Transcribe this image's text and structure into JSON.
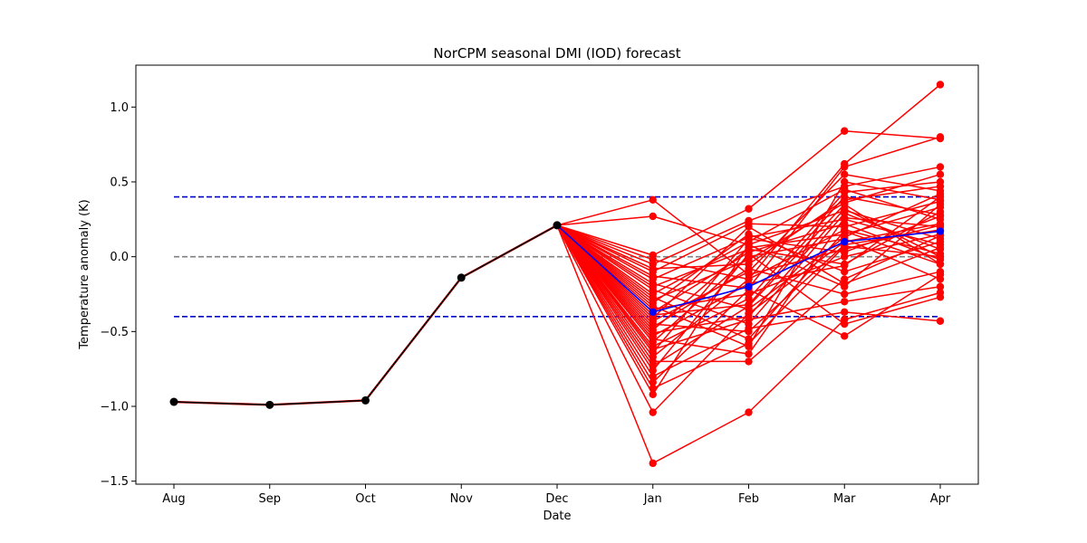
{
  "chart_data": {
    "type": "line",
    "title": "NorCPM seasonal DMI (IOD) forecast",
    "xlabel": "Date",
    "ylabel": "Temperature anomaly (K)",
    "categories": [
      "Aug",
      "Sep",
      "Oct",
      "Nov",
      "Dec",
      "Jan",
      "Feb",
      "Mar",
      "Apr"
    ],
    "ylim": [
      -1.52,
      1.28
    ],
    "yticks": [
      -1.5,
      -1.0,
      -0.5,
      0.0,
      0.5,
      1.0
    ],
    "ytick_labels": [
      "−1.5",
      "−1.0",
      "−0.5",
      "0.0",
      "0.5",
      "1.0"
    ],
    "grid": false,
    "reference_lines": [
      {
        "name": "upper threshold",
        "y": 0.4,
        "color": "#0000cc",
        "style": "dashed"
      },
      {
        "name": "zero",
        "y": 0.0,
        "color": "#808080",
        "style": "dashed"
      },
      {
        "name": "lower threshold",
        "y": -0.4,
        "color": "#0000cc",
        "style": "dashed"
      }
    ],
    "observed": {
      "color": "#000000",
      "x": [
        "Aug",
        "Sep",
        "Oct",
        "Nov",
        "Dec"
      ],
      "values": [
        -0.97,
        -0.99,
        -0.96,
        -0.14,
        0.21
      ]
    },
    "ensemble_mean": {
      "color": "#0000ff",
      "x": [
        "Dec",
        "Jan",
        "Feb",
        "Mar",
        "Apr"
      ],
      "values": [
        0.21,
        -0.37,
        -0.2,
        0.1,
        0.17
      ]
    },
    "ensemble_color": "#ff0000",
    "ensemble_x": [
      "Dec",
      "Jan",
      "Feb",
      "Mar",
      "Apr"
    ],
    "ensemble_members": [
      [
        0.21,
        0.38,
        -0.12,
        0.05,
        0.21
      ],
      [
        0.21,
        0.27,
        0.08,
        0.31,
        0.12
      ],
      [
        0.21,
        0.01,
        0.32,
        0.84,
        0.79
      ],
      [
        0.21,
        -0.02,
        -0.15,
        0.62,
        1.15
      ],
      [
        0.21,
        -0.05,
        0.24,
        0.47,
        0.6
      ],
      [
        0.21,
        -0.08,
        -0.05,
        0.38,
        0.47
      ],
      [
        0.21,
        -0.1,
        0.22,
        0.2,
        0.37
      ],
      [
        0.21,
        -0.13,
        -0.21,
        0.6,
        0.8
      ],
      [
        0.21,
        -0.15,
        0.13,
        0.25,
        0.08
      ],
      [
        0.21,
        -0.18,
        -0.35,
        0.13,
        0.42
      ],
      [
        0.21,
        -0.2,
        0.05,
        -0.05,
        0.3
      ],
      [
        0.21,
        -0.22,
        -0.45,
        0.29,
        0.05
      ],
      [
        0.21,
        -0.25,
        0.1,
        0.45,
        0.25
      ],
      [
        0.21,
        -0.27,
        -0.55,
        0.17,
        -0.05
      ],
      [
        0.21,
        -0.29,
        -0.02,
        0.36,
        0.55
      ],
      [
        0.21,
        -0.31,
        0.15,
        -0.1,
        0.1
      ],
      [
        0.21,
        -0.33,
        -0.6,
        0.5,
        0.38
      ],
      [
        0.21,
        -0.35,
        -0.25,
        0.0,
        0.15
      ],
      [
        0.21,
        -0.37,
        0.03,
        0.22,
        -0.02
      ],
      [
        0.21,
        -0.39,
        -0.32,
        0.4,
        0.28
      ],
      [
        0.21,
        -0.41,
        0.2,
        -0.18,
        0.06
      ],
      [
        0.21,
        -0.43,
        -0.1,
        0.55,
        0.44
      ],
      [
        0.21,
        -0.45,
        -0.5,
        0.08,
        0.18
      ],
      [
        0.21,
        -0.47,
        -0.08,
        -0.25,
        -0.1
      ],
      [
        0.21,
        -0.49,
        0.06,
        0.15,
        0.33
      ],
      [
        0.21,
        -0.51,
        -0.4,
        0.32,
        0.0
      ],
      [
        0.21,
        -0.53,
        -0.18,
        -0.06,
        0.4
      ],
      [
        0.21,
        -0.55,
        -0.65,
        0.26,
        0.2
      ],
      [
        0.21,
        -0.57,
        0.0,
        0.12,
        -0.15
      ],
      [
        0.21,
        -0.6,
        -0.28,
        0.43,
        0.5
      ],
      [
        0.21,
        -0.62,
        -0.42,
        -0.3,
        -0.2
      ],
      [
        0.21,
        -0.64,
        0.12,
        0.03,
        0.27
      ],
      [
        0.21,
        -0.67,
        -0.15,
        0.18,
        0.02
      ],
      [
        0.21,
        -0.7,
        -0.7,
        -0.15,
        0.14
      ],
      [
        0.21,
        -0.73,
        -0.33,
        0.35,
        -0.05
      ],
      [
        0.21,
        -0.76,
        0.02,
        -0.45,
        -0.27
      ],
      [
        0.21,
        -0.8,
        -0.48,
        -0.37,
        -0.43
      ],
      [
        0.21,
        -0.84,
        -0.22,
        -0.53,
        -0.12
      ],
      [
        0.21,
        -0.88,
        -0.58,
        0.07,
        0.0
      ],
      [
        0.21,
        -0.92,
        0.08,
        -0.2,
        0.35
      ],
      [
        0.21,
        -1.04,
        -0.38,
        0.1,
        0.22
      ],
      [
        0.21,
        -1.38,
        -1.04,
        -0.42,
        -0.24
      ]
    ]
  }
}
